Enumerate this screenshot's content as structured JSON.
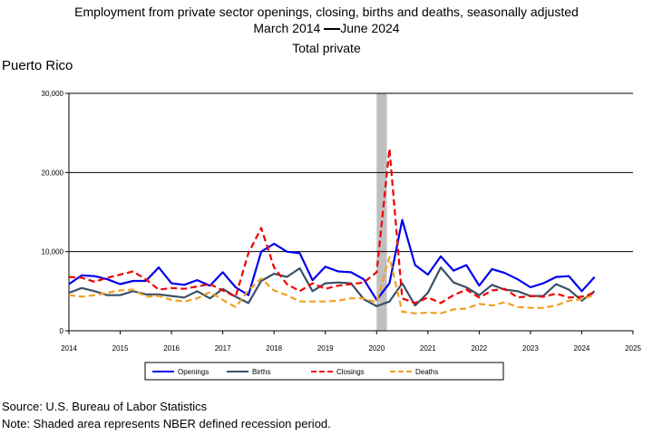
{
  "header": {
    "title": "Employment from private sector openings, closing, births and deaths, seasonally adjusted",
    "subtitle_start": "March 2014",
    "subtitle_end": "June 2024",
    "subtitle2": "Total private",
    "region": "Puerto Rico"
  },
  "footer": {
    "source": "Source: U.S. Bureau of Labor Statistics",
    "note": "Note: Shaded area represents NBER defined recession period."
  },
  "chart_data": {
    "type": "line",
    "x_unit": "year (decimal)",
    "xlim": [
      2014,
      2025
    ],
    "ylim": [
      0,
      30000
    ],
    "y_ticks": [
      0,
      10000,
      20000,
      30000
    ],
    "y_tick_labels": [
      "0",
      "10,000",
      "20,000",
      "30,000"
    ],
    "x_ticks": [
      2014,
      2015,
      2016,
      2017,
      2018,
      2019,
      2020,
      2021,
      2022,
      2023,
      2024,
      2025
    ],
    "x_tick_labels": [
      "2014",
      "2015",
      "2016",
      "2017",
      "2018",
      "2019",
      "2020",
      "2021",
      "2022",
      "2023",
      "2024",
      "2025"
    ],
    "gridlines_y": [
      10000,
      20000,
      30000
    ],
    "recession": {
      "start": 2020.0,
      "end": 2020.2,
      "color": "#c0c0c0"
    },
    "legend_position": "bottom",
    "x": [
      2014.0,
      2014.25,
      2014.5,
      2014.75,
      2015.0,
      2015.25,
      2015.5,
      2015.75,
      2016.0,
      2016.25,
      2016.5,
      2016.75,
      2017.0,
      2017.25,
      2017.5,
      2017.75,
      2018.0,
      2018.25,
      2018.5,
      2018.75,
      2019.0,
      2019.25,
      2019.5,
      2019.75,
      2020.0,
      2020.25,
      2020.5,
      2020.75,
      2021.0,
      2021.25,
      2021.5,
      2021.75,
      2022.0,
      2022.25,
      2022.5,
      2022.75,
      2023.0,
      2023.25,
      2023.5,
      2023.75,
      2024.0,
      2024.25
    ],
    "series": [
      {
        "name": "Openings",
        "color": "#0000ee",
        "dash": "solid",
        "values": [
          5900,
          7000,
          6900,
          6500,
          5900,
          6300,
          6300,
          8000,
          6000,
          5800,
          6400,
          5700,
          7400,
          5500,
          4500,
          10000,
          11000,
          10000,
          9800,
          6400,
          8100,
          7500,
          7400,
          6500,
          3900,
          6000,
          14000,
          8300,
          7100,
          9400,
          7600,
          8300,
          5700,
          7800,
          7300,
          6500,
          5500,
          6000,
          6800,
          6900,
          5000,
          6800
        ]
      },
      {
        "name": "Births",
        "color": "#3a5068",
        "dash": "solid",
        "values": [
          4800,
          5400,
          5000,
          4500,
          4500,
          5000,
          4600,
          4600,
          4400,
          4200,
          5000,
          4100,
          5300,
          4300,
          3500,
          6300,
          7200,
          6800,
          7900,
          5000,
          6000,
          6100,
          6000,
          4000,
          3100,
          3700,
          6000,
          3200,
          4800,
          8000,
          6100,
          5500,
          4500,
          5800,
          5200,
          5000,
          4400,
          4400,
          5900,
          5200,
          3800,
          5000
        ]
      },
      {
        "name": "Closings",
        "color": "#ee0000",
        "dash": "dashed",
        "values": [
          6800,
          6700,
          6200,
          6700,
          7100,
          7500,
          6500,
          5200,
          5400,
          5300,
          5600,
          5900,
          5100,
          4300,
          9800,
          13000,
          8000,
          5900,
          5000,
          6000,
          5300,
          5700,
          5900,
          6100,
          7400,
          23000,
          4100,
          3500,
          4200,
          3500,
          4500,
          5200,
          4200,
          5100,
          5300,
          4200,
          4400,
          4300,
          4700,
          4200,
          4300,
          4800
        ]
      },
      {
        "name": "Deaths",
        "color": "#f0a020",
        "dash": "dashed",
        "values": [
          4500,
          4300,
          4500,
          4800,
          5100,
          5200,
          4300,
          4400,
          3900,
          3700,
          4100,
          4900,
          3900,
          3000,
          5100,
          6600,
          5100,
          4500,
          3700,
          3700,
          3700,
          3800,
          4100,
          4100,
          3600,
          9300,
          2400,
          2200,
          2300,
          2200,
          2700,
          2800,
          3400,
          3200,
          3600,
          3000,
          2900,
          2900,
          3200,
          3800,
          4000,
          4500
        ]
      }
    ]
  }
}
